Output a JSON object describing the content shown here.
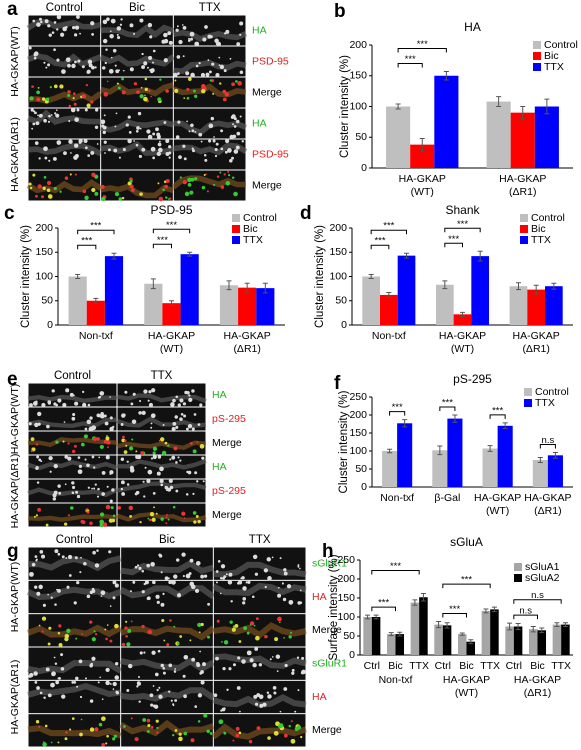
{
  "images": [
    {
      "panel": "a",
      "columns": [
        "Control",
        "Bic",
        "TTX"
      ],
      "channels": [
        "HA",
        "PSD-95",
        "Merge"
      ],
      "channel_colors": [
        "#22b022",
        "#e02020",
        "#000000"
      ],
      "groups": [
        "HA-GKAP(WT)",
        "HA-GKAP(ΔR1)"
      ]
    },
    {
      "panel": "e",
      "columns": [
        "Control",
        "TTX"
      ],
      "channels": [
        "HA",
        "pS-295",
        "Merge"
      ],
      "channel_colors": [
        "#22b022",
        "#e02020",
        "#000000"
      ],
      "groups": [
        "HA-GKAP(WT)",
        "HA-GKAP(ΔR1)"
      ]
    },
    {
      "panel": "g",
      "columns": [
        "Control",
        "Bic",
        "TTX"
      ],
      "channels": [
        "sGluR1",
        "HA",
        "Merge"
      ],
      "channel_colors": [
        "#22b022",
        "#e02020",
        "#000000"
      ],
      "groups": [
        "HA-GKAP(WT)",
        "HA-GKAP(ΔR1)"
      ]
    }
  ],
  "chart_data": [
    {
      "panel": "b",
      "type": "bar",
      "title": "HA",
      "ylabel": "Cluster intensity (%)",
      "categories": [
        "HA-GKAP\n(WT)",
        "HA-GKAP\n(ΔR1)"
      ],
      "series": [
        {
          "name": "Control",
          "color": "#bfbfbf",
          "values": [
            100,
            108
          ],
          "errors": [
            4,
            8
          ]
        },
        {
          "name": "Bic",
          "color": "#ff0000",
          "values": [
            38,
            90
          ],
          "errors": [
            10,
            10
          ]
        },
        {
          "name": "TTX",
          "color": "#0000ff",
          "values": [
            150,
            100
          ],
          "errors": [
            7,
            12
          ]
        }
      ],
      "ylim": [
        0,
        200
      ],
      "yticks": [
        0,
        50,
        100,
        150,
        200
      ],
      "legend": "upper right",
      "annotations": [
        "***",
        "***"
      ]
    },
    {
      "panel": "c",
      "type": "bar",
      "title": "PSD-95",
      "ylabel": "Cluster intensity (%)",
      "categories": [
        "Non-txf",
        "HA-GKAP\n(WT)",
        "HA-GKAP\n(ΔR1)"
      ],
      "series": [
        {
          "name": "Control",
          "color": "#bfbfbf",
          "values": [
            100,
            85,
            82
          ],
          "errors": [
            4,
            10,
            9
          ]
        },
        {
          "name": "Bic",
          "color": "#ff0000",
          "values": [
            50,
            45,
            77
          ],
          "errors": [
            5,
            5,
            9
          ]
        },
        {
          "name": "TTX",
          "color": "#0000ff",
          "values": [
            142,
            146,
            76
          ],
          "errors": [
            6,
            4,
            10
          ]
        }
      ],
      "ylim": [
        0,
        200
      ],
      "yticks": [
        0,
        50,
        100,
        150,
        200
      ],
      "legend": "upper right",
      "annotations": [
        "***",
        "***",
        "***",
        "***"
      ]
    },
    {
      "panel": "d",
      "type": "bar",
      "title": "Shank",
      "ylabel": "Cluster intensity (%)",
      "categories": [
        "Non-txf",
        "HA-GKAP\n(WT)",
        "HA-GKAP\n(ΔR1)"
      ],
      "series": [
        {
          "name": "Control",
          "color": "#bfbfbf",
          "values": [
            100,
            83,
            80
          ],
          "errors": [
            4,
            8,
            7
          ]
        },
        {
          "name": "Bic",
          "color": "#ff0000",
          "values": [
            62,
            22,
            73
          ],
          "errors": [
            5,
            4,
            9
          ]
        },
        {
          "name": "TTX",
          "color": "#0000ff",
          "values": [
            143,
            142,
            80
          ],
          "errors": [
            5,
            10,
            6
          ]
        }
      ],
      "ylim": [
        0,
        200
      ],
      "yticks": [
        0,
        50,
        100,
        150,
        200
      ],
      "legend": "upper right",
      "annotations": [
        "***",
        "***",
        "***",
        "***"
      ]
    },
    {
      "panel": "f",
      "type": "bar",
      "title": "pS-295",
      "ylabel": "Cluster intensity (%)",
      "categories": [
        "Non-txf",
        "β-Gal",
        "HA-GKAP\n(WT)",
        "HA-GKAP\n(ΔR1)"
      ],
      "series": [
        {
          "name": "Control",
          "color": "#bfbfbf",
          "values": [
            100,
            102,
            107,
            75
          ],
          "errors": [
            5,
            12,
            8,
            7
          ]
        },
        {
          "name": "TTX",
          "color": "#0000ff",
          "values": [
            177,
            190,
            170,
            88
          ],
          "errors": [
            10,
            10,
            8,
            8
          ]
        }
      ],
      "ylim": [
        0,
        250
      ],
      "yticks": [
        0,
        50,
        100,
        150,
        200,
        250
      ],
      "legend": "upper right",
      "annotations": [
        "***",
        "***",
        "***",
        "n.s"
      ]
    },
    {
      "panel": "h",
      "type": "bar",
      "title": "sGluA",
      "ylabel": "Surface intensity (%)",
      "categories": [
        "Ctrl",
        "Bic",
        "TTX",
        "Ctrl",
        "Bic",
        "TTX",
        "Ctrl",
        "Bic",
        "TTX"
      ],
      "groups": [
        "Non-txf",
        "HA-GKAP\n(WT)",
        "HA-GKAP\n(ΔR1)"
      ],
      "series": [
        {
          "name": "sGluA1",
          "color": "#a6a6a6",
          "values": [
            100,
            55,
            138,
            80,
            55,
            116,
            75,
            68,
            80
          ],
          "errors": [
            5,
            4,
            7,
            8,
            3,
            5,
            9,
            7,
            5
          ]
        },
        {
          "name": "sGluA2",
          "color": "#000000",
          "values": [
            100,
            55,
            152,
            78,
            35,
            120,
            75,
            65,
            80
          ],
          "errors": [
            5,
            5,
            10,
            7,
            5,
            6,
            8,
            6,
            5
          ]
        }
      ],
      "ylim": [
        0,
        250
      ],
      "yticks": [
        0,
        50,
        100,
        150,
        200,
        250
      ],
      "legend": "upper right",
      "annotations": [
        "***",
        "***",
        "***",
        "***",
        "n.s",
        "n.s"
      ]
    }
  ]
}
